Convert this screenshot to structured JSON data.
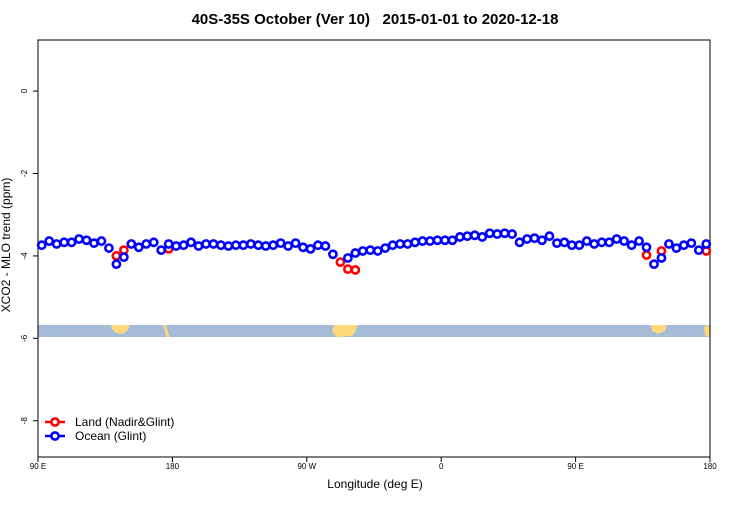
{
  "chart_data": {
    "type": "scatter",
    "title": "40S-35S October (Ver 10)   2015-01-01 to 2020-12-18",
    "x_label": "Longitude (deg E)",
    "y_label": "XCO2 - MLO trend (ppm)",
    "xlim": [
      90,
      540
    ],
    "ylim": [
      -8.88,
      1.24
    ],
    "xticks": [
      {
        "value": 90,
        "label": "90 E"
      },
      180,
      {
        "value": 270,
        "label": "90 W"
      },
      {
        "value": 360,
        "label": "0"
      },
      {
        "value": 450,
        "label": "90 E"
      },
      {
        "value": 540,
        "label": "180"
      }
    ],
    "yticks": [
      0,
      -2,
      -4,
      -6,
      -8
    ],
    "legend": "bottom-left",
    "series": [
      {
        "name": "Land (Nadir&Glint)",
        "color": "#ff0000",
        "x": [
          142.5,
          147.5,
          177.5,
          292.5,
          297.5,
          302.5,
          497.5,
          507.5,
          537.5
        ],
        "values": [
          -4.0,
          -3.86,
          -3.83,
          -4.15,
          -4.32,
          -4.34,
          -3.98,
          -3.88,
          -3.88
        ]
      },
      {
        "name": "Ocean (Glint)",
        "color": "#0000ff",
        "x": [
          92.5,
          97.5,
          102.5,
          107.5,
          112.5,
          117.5,
          122.5,
          127.5,
          132.5,
          137.5,
          142.5,
          147.5,
          152.5,
          157.5,
          162.5,
          167.5,
          172.5,
          177.5,
          182.5,
          187.5,
          192.5,
          197.5,
          202.5,
          207.5,
          212.5,
          217.5,
          222.5,
          227.5,
          232.5,
          237.5,
          242.5,
          247.5,
          252.5,
          257.5,
          262.5,
          267.5,
          272.5,
          277.5,
          282.5,
          287.5,
          292.5,
          297.5,
          302.5,
          307.5,
          312.5,
          317.5,
          322.5,
          327.5,
          332.5,
          337.5,
          342.5,
          347.5,
          352.5,
          357.5,
          362.5,
          367.5,
          372.5,
          377.5,
          382.5,
          387.5,
          392.5,
          397.5,
          402.5,
          407.5,
          412.5,
          417.5,
          422.5,
          427.5,
          432.5,
          437.5,
          442.5,
          447.5,
          452.5,
          457.5,
          462.5,
          467.5,
          472.5,
          477.5,
          482.5,
          487.5,
          492.5,
          497.5,
          502.5,
          507.5,
          512.5,
          517.5,
          522.5,
          527.5,
          532.5,
          537.5
        ],
        "values": [
          -3.74,
          -3.64,
          -3.71,
          -3.67,
          -3.67,
          -3.59,
          -3.62,
          -3.69,
          -3.64,
          -3.81,
          -4.2,
          -4.03,
          -3.71,
          -3.79,
          -3.71,
          -3.67,
          -3.86,
          -3.71,
          -3.76,
          -3.74,
          -3.67,
          -3.76,
          -3.71,
          -3.71,
          -3.74,
          -3.76,
          -3.74,
          -3.74,
          -3.71,
          -3.74,
          -3.76,
          -3.74,
          -3.69,
          -3.76,
          -3.69,
          -3.79,
          -3.83,
          -3.74,
          -3.76,
          -3.96,
          null,
          -4.05,
          -3.93,
          -3.88,
          -3.86,
          -3.88,
          -3.81,
          -3.74,
          -3.71,
          -3.71,
          -3.67,
          -3.64,
          -3.64,
          -3.62,
          -3.62,
          -3.62,
          -3.54,
          -3.52,
          -3.5,
          -3.54,
          -3.45,
          -3.47,
          -3.45,
          -3.47,
          -3.67,
          -3.59,
          -3.57,
          -3.62,
          -3.52,
          -3.69,
          -3.67,
          -3.74,
          -3.74,
          -3.64,
          -3.71,
          -3.67,
          -3.67,
          -3.59,
          -3.64,
          -3.74,
          -3.64,
          -3.79,
          -4.2,
          -4.05,
          -3.71,
          -3.81,
          -3.74,
          -3.69,
          -3.86,
          -3.71
        ]
      }
    ]
  }
}
